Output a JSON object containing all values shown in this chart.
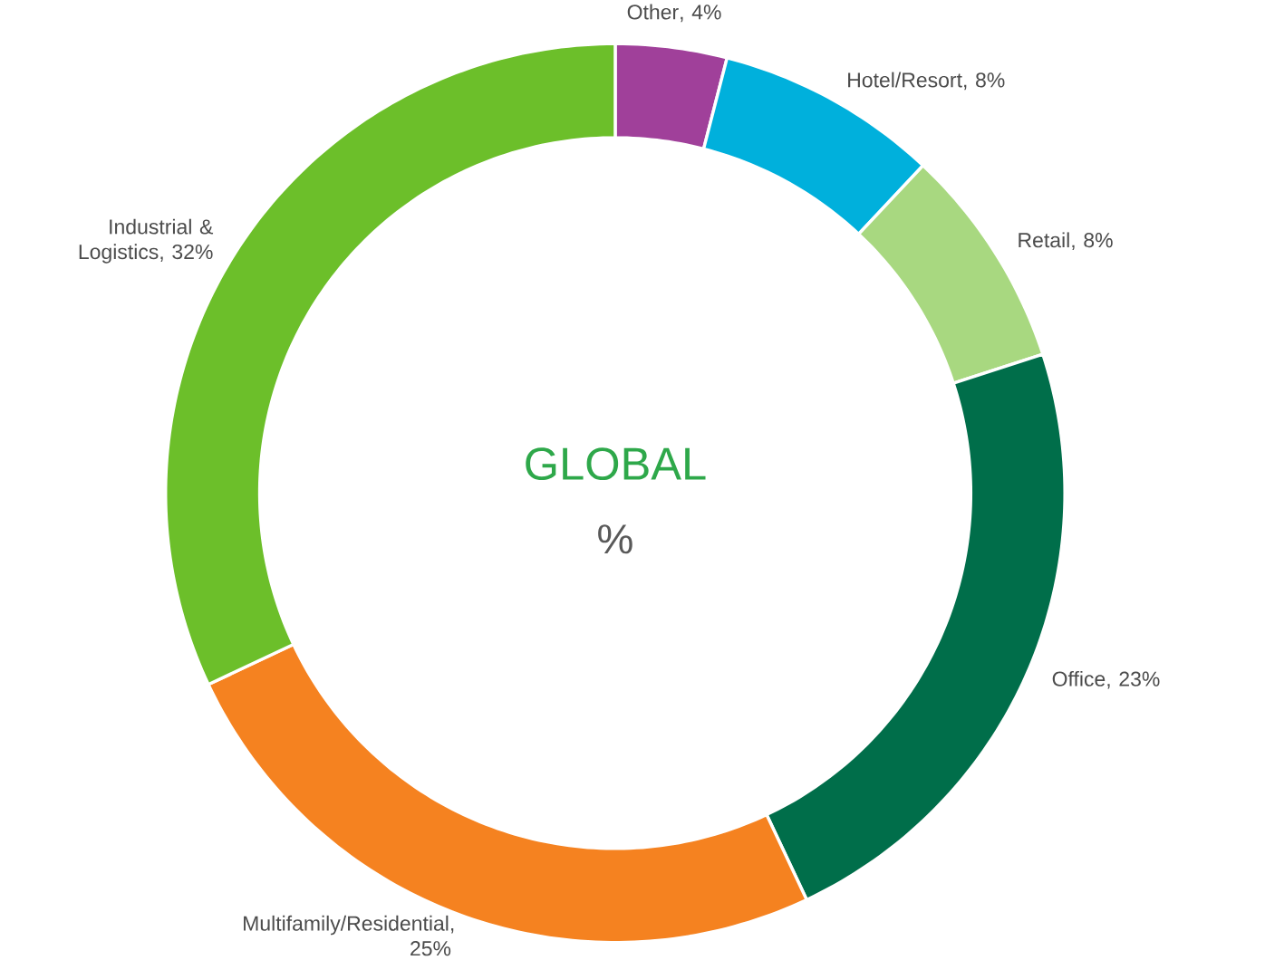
{
  "chart_data": {
    "type": "donut",
    "title": "GLOBAL",
    "subtitle": "%",
    "categories": [
      "Other",
      "Hotel/Resort",
      "Retail",
      "Office",
      "Multifamily/Residential",
      "Industrial & Logistics"
    ],
    "values": [
      4,
      8,
      8,
      23,
      25,
      32
    ],
    "colors": [
      "#a0409a",
      "#00b0dc",
      "#a8d880",
      "#006e4a",
      "#f58220",
      "#6cbf2a"
    ],
    "value_labels": [
      ", 4%",
      ", 8%",
      ", 8%",
      ", 23%",
      ", 25%",
      ", 32%"
    ]
  }
}
